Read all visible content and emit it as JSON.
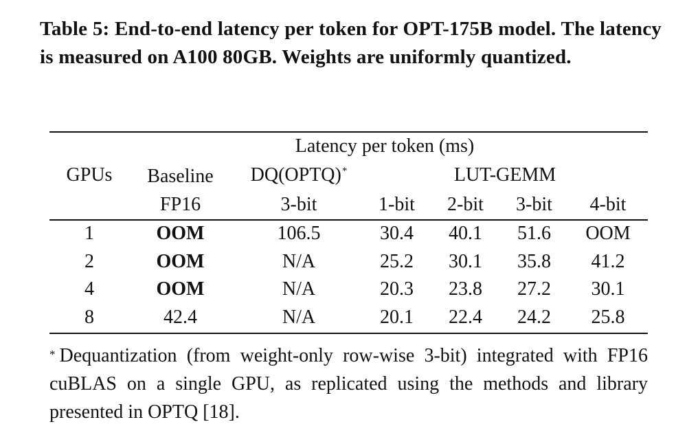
{
  "caption": "Table 5: End-to-end latency per token for OPT-175B model. The latency is measured on A100 80GB. Weights are uniformly quantized.",
  "table": {
    "group_header": "Latency per token (ms)",
    "col_gpus": "GPUs",
    "col_baseline": "Baseline",
    "col_baseline_sub": "FP16",
    "col_dq": "DQ(OPTQ)",
    "col_dq_mark": "*",
    "col_dq_sub": "3-bit",
    "col_lut": "LUT-GEMM",
    "lut_bits": [
      "1-bit",
      "2-bit",
      "3-bit",
      "4-bit"
    ],
    "rows": [
      {
        "gpus": "1",
        "baseline": "OOM",
        "baseline_bold": true,
        "dq": "106.5",
        "lut": [
          "30.4",
          "40.1",
          "51.6",
          "OOM"
        ]
      },
      {
        "gpus": "2",
        "baseline": "OOM",
        "baseline_bold": true,
        "dq": "N/A",
        "lut": [
          "25.2",
          "30.1",
          "35.8",
          "41.2"
        ]
      },
      {
        "gpus": "4",
        "baseline": "OOM",
        "baseline_bold": true,
        "dq": "N/A",
        "lut": [
          "20.3",
          "23.8",
          "27.2",
          "30.1"
        ]
      },
      {
        "gpus": "8",
        "baseline": "42.4",
        "baseline_bold": false,
        "dq": "N/A",
        "lut": [
          "20.1",
          "22.4",
          "24.2",
          "25.8"
        ]
      }
    ]
  },
  "footnote": {
    "mark": "*",
    "text": "Dequantization (from weight-only row-wise 3-bit) integrated with FP16 cuBLAS on a single GPU, as replicated using the methods and library presented in OPTQ [18]."
  }
}
